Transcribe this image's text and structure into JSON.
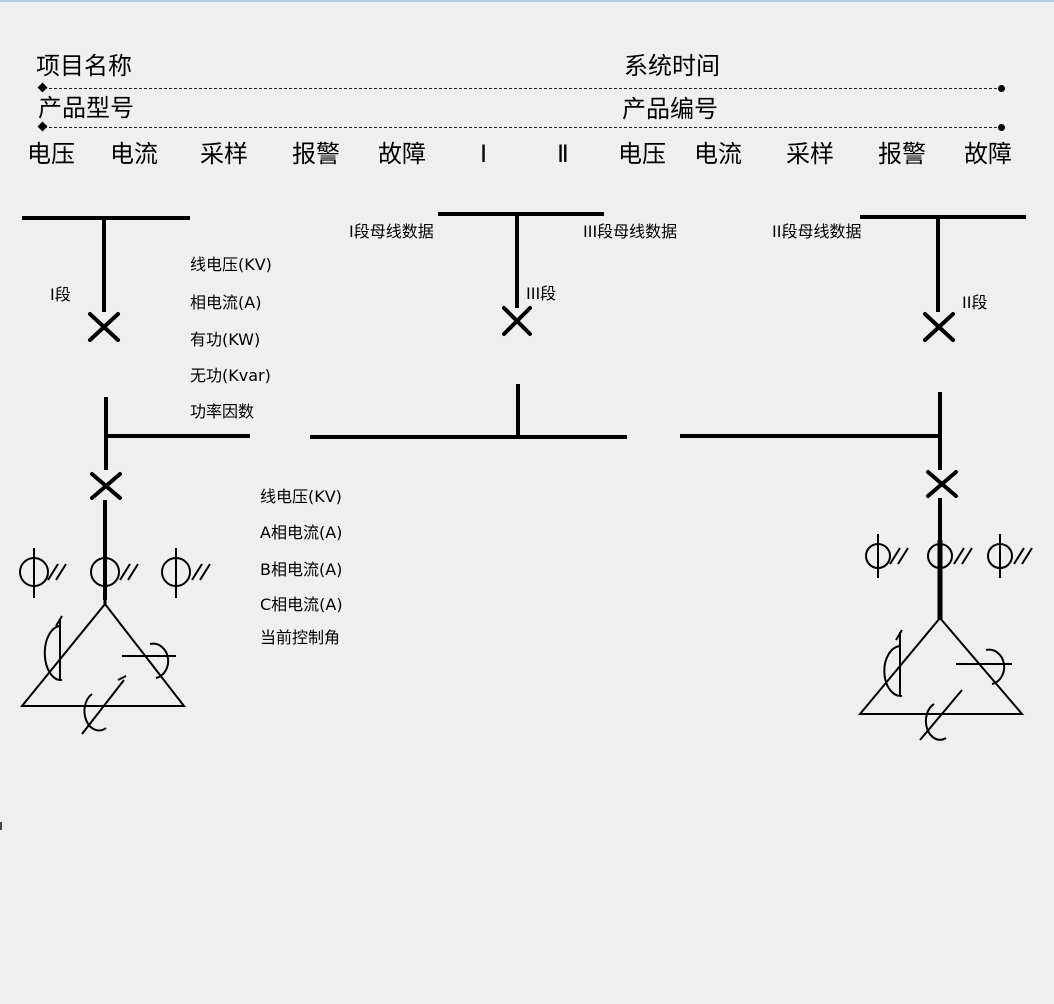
{
  "header": {
    "project_name_label": "项目名称",
    "system_time_label": "系统时间",
    "product_model_label": "产品型号",
    "product_number_label": "产品编号"
  },
  "status_row": [
    "电压",
    "电流",
    "采样",
    "报警",
    "故障",
    "Ⅰ",
    "Ⅱ",
    "电压",
    "电流",
    "采样",
    "报警",
    "故障"
  ],
  "sections": {
    "section_1_label": "I段",
    "section_3_label": "III段",
    "section_2_label": "II段",
    "bus_1_data_label": "I段母线数据",
    "bus_3_data_label": "III段母线数据",
    "bus_2_data_label": "II段母线数据"
  },
  "bus_measurements": [
    "线电压(KV)",
    "相电流(A)",
    "有功(KW)",
    "无功(Kvar)",
    "功率因数"
  ],
  "load_measurements": [
    "线电压(KV)",
    "A相电流(A)",
    "B相电流(A)",
    "C相电流(A)",
    "当前控制角"
  ]
}
